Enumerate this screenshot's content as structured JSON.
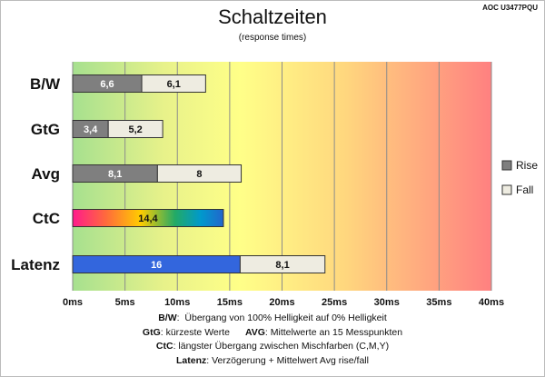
{
  "header": {
    "title": "Schaltzeiten",
    "subtitle": "(response times)",
    "model": "AOC U3477PQU"
  },
  "chart_data": {
    "type": "bar",
    "orientation": "horizontal",
    "stacked": true,
    "categories": [
      "B/W",
      "GtG",
      "Avg",
      "CtC",
      "Latenz"
    ],
    "series": [
      {
        "name": "Rise",
        "values": [
          6.6,
          3.4,
          8.1,
          null,
          null
        ]
      },
      {
        "name": "Fall",
        "values": [
          6.1,
          5.2,
          8,
          null,
          8.1
        ]
      }
    ],
    "single_values": {
      "CtC": 14.4,
      "Latenz": 16
    },
    "value_labels": [
      [
        "6,6",
        "6,1"
      ],
      [
        "3,4",
        "5,2"
      ],
      [
        "8,1",
        "8"
      ],
      [
        "14,4"
      ],
      [
        "16",
        "8,1"
      ]
    ],
    "xlim": [
      0,
      40
    ],
    "x_ticks": [
      0,
      5,
      10,
      15,
      20,
      25,
      30,
      35,
      40
    ],
    "x_tick_labels": [
      "0ms",
      "5ms",
      "10ms",
      "15ms",
      "20ms",
      "25ms",
      "30ms",
      "35ms",
      "40ms"
    ],
    "grid": true,
    "background": "gradient green-yellow-orange-red",
    "legend": {
      "position": "right",
      "entries": [
        "Rise",
        "Fall"
      ]
    },
    "colors": {
      "rise": "#7f7f7f",
      "fall": "#eeece1",
      "latenz": "#3366dd",
      "ctc_gradient": [
        "#ff1a8c",
        "#ffcc00",
        "#00aa66",
        "#0099cc",
        "#2266cc"
      ]
    }
  },
  "notes": [
    {
      "key": "B/W",
      "text": "Übergang von 100% Helligkeit auf 0% Helligkeit"
    },
    {
      "key": "GtG",
      "text": "kürzeste  Werte",
      "key2": "AVG",
      "text2": "Mittelwerte  an 15 Messpunkten"
    },
    {
      "key": "CtC",
      "text": "längster Übergang  zwischen Mischfarben (C,M,Y)"
    },
    {
      "key": "Latenz",
      "text": "Verzögerung  + Mittelwert  Avg rise/fall"
    }
  ]
}
